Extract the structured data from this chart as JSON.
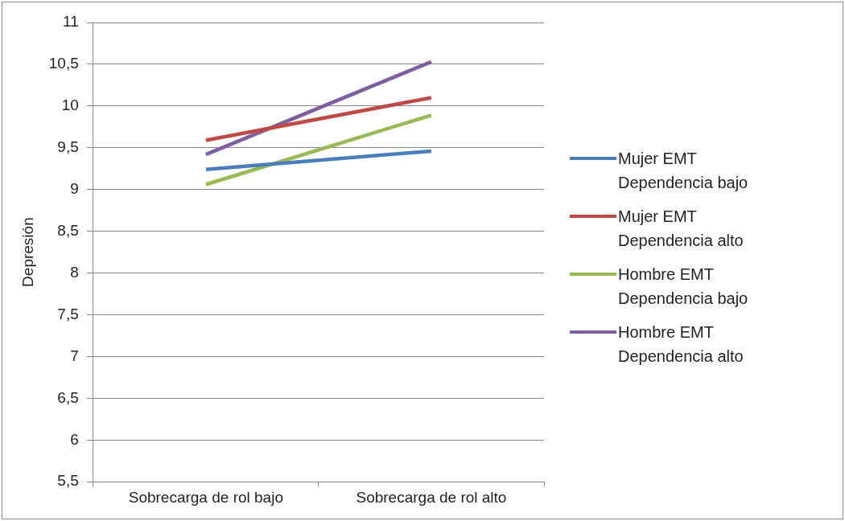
{
  "chart_data": {
    "type": "line",
    "ylabel": "Depresión",
    "categories": [
      "Sobrecarga de rol bajo",
      "Sobrecarga de rol alto"
    ],
    "series": [
      {
        "name": "Mujer EMT Dependencia bajo",
        "color": "#4a7ebb",
        "values": [
          9.24,
          9.46
        ]
      },
      {
        "name": "Mujer EMT Dependencia alto",
        "color": "#be4b48",
        "values": [
          9.59,
          10.1
        ]
      },
      {
        "name": "Hombre EMT Dependencia bajo",
        "color": "#98b954",
        "values": [
          9.06,
          9.89
        ]
      },
      {
        "name": "Hombre EMT Dependencia alto",
        "color": "#7d5fa0",
        "values": [
          9.42,
          10.53
        ]
      }
    ],
    "ylim": [
      5.5,
      11
    ],
    "yticks": [
      {
        "value": 5.5,
        "label": "5,5"
      },
      6,
      {
        "value": 6.5,
        "label": "6,5"
      },
      7,
      {
        "value": 7.5,
        "label": "7,5"
      },
      8,
      {
        "value": 8.5,
        "label": "8,5"
      },
      9,
      {
        "value": 9.5,
        "label": "9,5"
      },
      10,
      {
        "value": 10.5,
        "label": "10,5"
      },
      11
    ],
    "grid": "y",
    "legend": "right",
    "marker": "none",
    "line_style": "solid"
  }
}
